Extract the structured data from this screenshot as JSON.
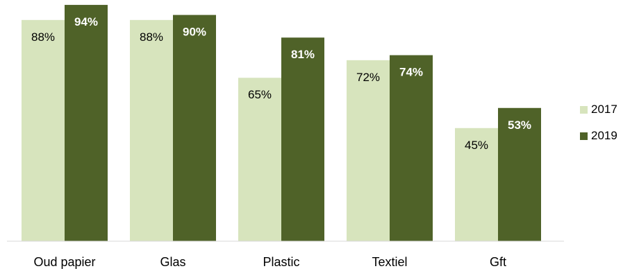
{
  "chart_data": {
    "type": "bar",
    "categories": [
      "Oud papier",
      "Glas",
      "Plastic",
      "Textiel",
      "Gft"
    ],
    "series": [
      {
        "name": "2017",
        "values": [
          88,
          88,
          65,
          72,
          45
        ],
        "labels": [
          "88%",
          "88%",
          "65%",
          "72%",
          "45%"
        ],
        "color": "#d7e4bd",
        "label_color": "#000000",
        "label_bold": false
      },
      {
        "name": "2019",
        "values": [
          94,
          90,
          81,
          74,
          53
        ],
        "labels": [
          "94%",
          "90%",
          "81%",
          "74%",
          "53%"
        ],
        "color": "#4f6228",
        "label_color": "#ffffff",
        "label_bold": true
      }
    ],
    "ylim": [
      0,
      100
    ],
    "grid": false,
    "legend_position": "right",
    "title": "",
    "xlabel": "",
    "ylabel": ""
  }
}
